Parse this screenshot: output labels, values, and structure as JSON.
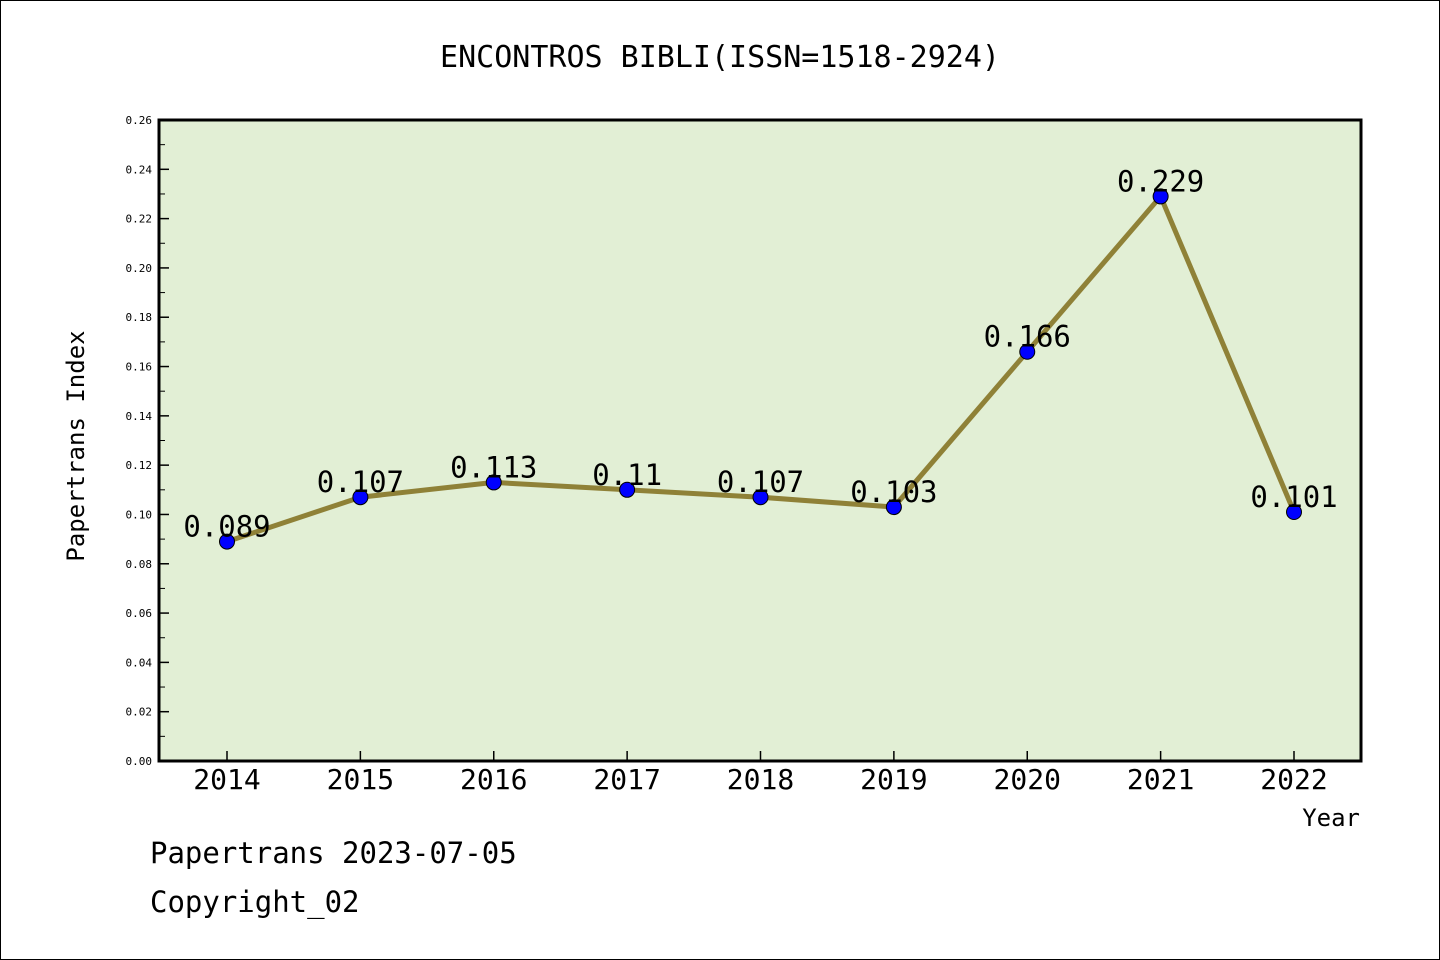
{
  "chart_data": {
    "type": "line",
    "title": "ENCONTROS BIBLI(ISSN=1518-2924)",
    "xlabel": "Year",
    "ylabel": "Papertrans Index",
    "categories": [
      "2014",
      "2015",
      "2016",
      "2017",
      "2018",
      "2019",
      "2020",
      "2021",
      "2022"
    ],
    "values": [
      0.089,
      0.107,
      0.113,
      0.11,
      0.107,
      0.103,
      0.166,
      0.229,
      0.101
    ],
    "data_labels": [
      "0.089",
      "0.107",
      "0.113",
      "0.11",
      "0.107",
      "0.103",
      "0.166",
      "0.229",
      "0.101"
    ],
    "ylim": [
      0,
      0.26
    ],
    "yticks": [
      "0.00",
      "0.02",
      "0.04",
      "0.06",
      "0.08",
      "0.10",
      "0.12",
      "0.14",
      "0.16",
      "0.18",
      "0.20",
      "0.22",
      "0.24",
      "0.26"
    ],
    "grid": false,
    "colors": {
      "plot_background": "#e2efd5",
      "line": "#8f8137",
      "marker": "#0000ff"
    }
  },
  "footer": {
    "line1": "Papertrans 2023-07-05",
    "line2": "Copyright_02"
  }
}
